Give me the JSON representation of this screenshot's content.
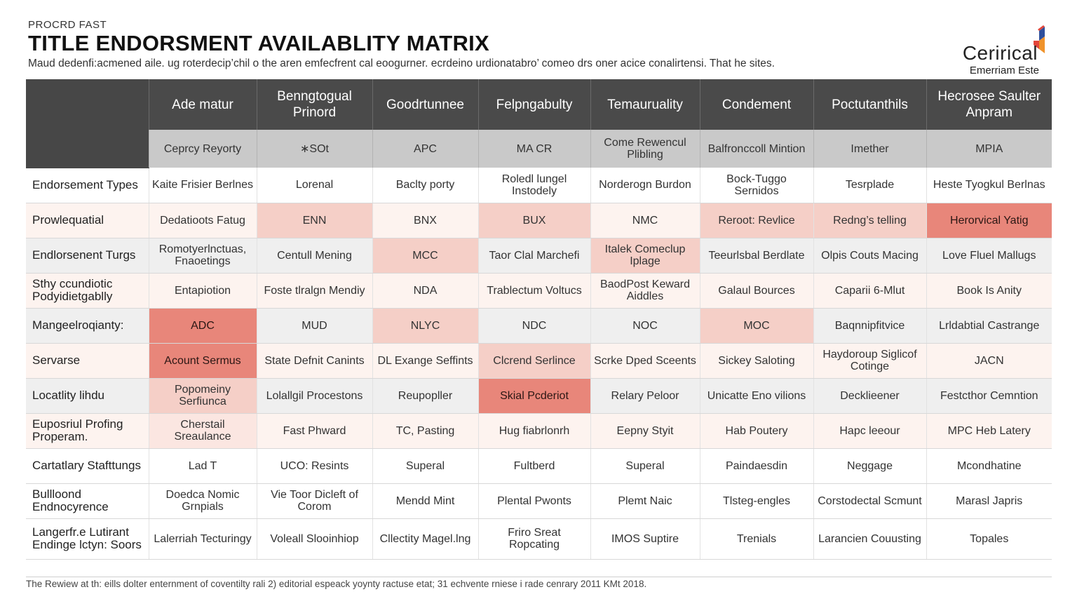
{
  "header": {
    "eyebrow": "PROCRD FAST",
    "title": "TITLE ENDORSMENT AVAILABLITY MATRIX",
    "subtitle": "Maud dedenfi:acmened aile. ug roterdecip’chil o the aren  emfecfrent cal eoogurner.  ecrdeino urdionatabro’ comeo drs oner acice conalirtensi. That he sites."
  },
  "brand": {
    "name": "Cerirical",
    "sub": "Emerriam Este",
    "colors": {
      "blue": "#2f4f9c",
      "red": "#e2463b",
      "orange": "#f0932b"
    }
  },
  "colors": {
    "header_bg": "#4a4a4a",
    "subheader_bg": "#c9c9c9",
    "highlight_light": "#f5cfc7",
    "highlight_strong": "#e8867a",
    "row_tint_pale": "#fdf3ef",
    "row_tint_gray": "#efefef"
  },
  "columns": [
    {
      "label": "Ade matur",
      "sub": "Ceprcy Reyorty"
    },
    {
      "label": "Benngtogual Prinord",
      "sub": "∗SOt"
    },
    {
      "label": "Goodrtunnee",
      "sub": "APC"
    },
    {
      "label": "Felpngabulty",
      "sub": "MA CR"
    },
    {
      "label": "Temauruality",
      "sub": "Come Rewencul Plibling"
    },
    {
      "label": "Condement",
      "sub": "Balfronccoll Mintion"
    },
    {
      "label": "Poctutanthils",
      "sub": "Imether"
    },
    {
      "label": "Hecrosee Saulter Anpram",
      "sub": "MPIA"
    }
  ],
  "rows": [
    {
      "label": "Endorsement Types",
      "tint": "white",
      "cells": [
        "Kaite Frisier Berlnes",
        "Lorenal",
        "Baclty porty",
        "Roledl lungel Instodely",
        "Norderogn Burdon",
        "Bock-Tuggo Sernidos",
        "Tesrplade",
        "Heste Tyogkul Berlnas"
      ],
      "styles": [
        "",
        "",
        "",
        "",
        "",
        "",
        "",
        ""
      ]
    },
    {
      "label": "Prowlequatial",
      "tint": "pale",
      "cells": [
        "Dedatioots Fatug",
        "ENN",
        "BNX",
        "BUX",
        "NMC",
        "Reroot: Revlice",
        "Redng’s telling",
        "Herorvical Yatig"
      ],
      "styles": [
        "",
        "light",
        "",
        "light",
        "",
        "light",
        "light",
        "strong"
      ]
    },
    {
      "label": "Endlorsenent Turgs",
      "tint": "gray",
      "cells": [
        "Romotyerlnctuas, Fnaoetings",
        "Centull Mening",
        "MCC",
        "Taor Clal Marchefi",
        "Italek Comeclup Iplage",
        "Teeurlsbal Berdlate",
        "Olpis Couts Macing",
        "Love Fluel Mallugs"
      ],
      "styles": [
        "",
        "",
        "light",
        "",
        "light",
        "",
        "",
        ""
      ]
    },
    {
      "label": "Sthy ccundiotic Podyidietgablly",
      "tint": "pale",
      "cells": [
        "Entapiotion",
        "Foste tlralgn Mendiy",
        "NDA",
        "Trablectum Voltucs",
        "BaodPost Keward Aiddles",
        "Galaul Bources",
        "Caparii 6-Mlut",
        "Book Is Anity"
      ],
      "styles": [
        "",
        "",
        "",
        "",
        "",
        "",
        "",
        ""
      ]
    },
    {
      "label": "Mangeelroqianty:",
      "tint": "gray",
      "cells": [
        "ADC",
        "MUD",
        "NLYC",
        "NDC",
        "NOC",
        "MOC",
        "Baqnnipfitvice",
        "Lrldabtial Castrange"
      ],
      "styles": [
        "strong",
        "",
        "light",
        "",
        "",
        "light",
        "",
        ""
      ]
    },
    {
      "label": "Servarse",
      "tint": "pale",
      "cells": [
        "Acount Sermus",
        "State Defnit Canints",
        "DL Exange Seffints",
        "Clcrend Serlince",
        "Scrke Dped Sceents",
        "Sickey Saloting",
        "Haydoroup Siglicof Cotinge",
        "JACN"
      ],
      "styles": [
        "strong",
        "",
        "",
        "light",
        "",
        "",
        "",
        ""
      ]
    },
    {
      "label": "Locatlity lihdu",
      "tint": "gray",
      "cells": [
        "Popomeiny Serfiunca",
        "Lolallgil Procestons",
        "Reupopller",
        "Skial Pcderiot",
        "Relary Peloor",
        "Unicatte Eno vilions",
        "Decklieener",
        "Festcthor Cemntion"
      ],
      "styles": [
        "light",
        "",
        "",
        "strong",
        "",
        "",
        "",
        ""
      ]
    },
    {
      "label": "Euposriul Profing Properam.",
      "tint": "pale",
      "cells": [
        "Cherstail Sreaulance",
        "Fast Phward",
        "TC, Pasting",
        "Hug fiabrlonrh",
        "Eepny Styit",
        "Hab Poutery",
        "Hapc leeour",
        "MPC Heb Latery"
      ],
      "styles": [
        "pale",
        "",
        "",
        "",
        "",
        "",
        "",
        ""
      ]
    },
    {
      "label": "Cartatlary Stafttungs",
      "tint": "white",
      "cells": [
        "Lad T",
        "UCO: Resints",
        "Superal",
        "Fultberd",
        "Superal",
        "Paindaesdin",
        "Neggage",
        "Mcondhatine"
      ],
      "styles": [
        "",
        "",
        "",
        "",
        "",
        "",
        "",
        ""
      ]
    },
    {
      "label": "Bullloond Endnocyrence",
      "tint": "white",
      "cells": [
        "Doedca Nomic Grnpials",
        "Vie Toor Dicleft of Corom",
        "Mendd Mint",
        "Plental Pwonts",
        "Plemt Naic",
        "Tlsteg-engles",
        "Corstodectal Scmunt",
        "Marasl Japris"
      ],
      "styles": [
        "",
        "",
        "",
        "",
        "",
        "",
        "",
        ""
      ]
    },
    {
      "label": "Langerfr.e Lutirant Endinge lctyn: Soors",
      "tint": "white",
      "cells": [
        "Lalerriah Tecturingy",
        "Voleall Slooinhiop",
        "Cllectity Magel.lng",
        "Friro Sreat Ropcating",
        "IMOS Suptire",
        "Trenials",
        "Larancien Couusting",
        "Topales"
      ],
      "styles": [
        "",
        "",
        "",
        "",
        "",
        "",
        "",
        ""
      ]
    }
  ],
  "footer": "The Rewiew at th: eills dolter enternment of coventilty rali 2) editorial espeack yoynty ractuse etat; 31 echvente rniese i rade cenrary 2011 KMt 2018."
}
